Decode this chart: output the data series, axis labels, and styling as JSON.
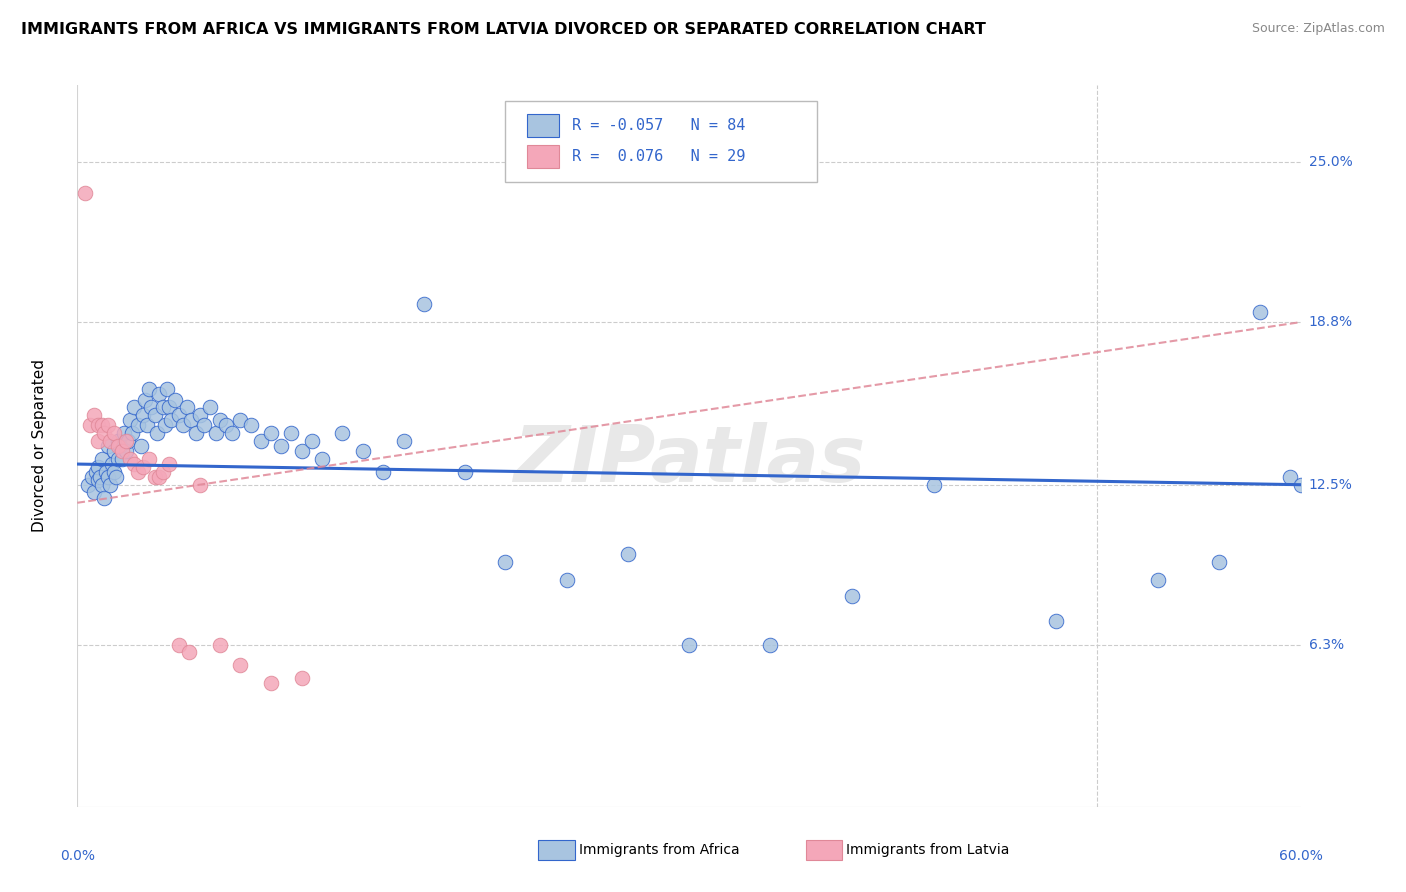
{
  "title": "IMMIGRANTS FROM AFRICA VS IMMIGRANTS FROM LATVIA DIVORCED OR SEPARATED CORRELATION CHART",
  "source": "Source: ZipAtlas.com",
  "ylabel": "Divorced or Separated",
  "xlim": [
    0.0,
    0.6
  ],
  "ylim": [
    0.0,
    0.28
  ],
  "xtick_labels": [
    "0.0%",
    "60.0%"
  ],
  "ytick_values": [
    0.063,
    0.125,
    0.188,
    0.25
  ],
  "ytick_labels": [
    "6.3%",
    "12.5%",
    "18.8%",
    "25.0%"
  ],
  "gridline_color": "#cccccc",
  "background_color": "#ffffff",
  "watermark": "ZIPatlas",
  "legend_r_africa": "-0.057",
  "legend_n_africa": "84",
  "legend_r_latvia": "0.076",
  "legend_n_latvia": "29",
  "africa_color": "#a8c4e0",
  "latvia_color": "#f4a7b9",
  "africa_line_color": "#3366cc",
  "latvia_line_color": "#e08898",
  "africa_line_y0": 0.133,
  "africa_line_y1": 0.125,
  "latvia_line_y0": 0.118,
  "latvia_line_y1": 0.188,
  "africa_scatter_x": [
    0.005,
    0.007,
    0.008,
    0.009,
    0.01,
    0.01,
    0.011,
    0.012,
    0.012,
    0.013,
    0.014,
    0.015,
    0.015,
    0.016,
    0.017,
    0.018,
    0.018,
    0.019,
    0.02,
    0.02,
    0.021,
    0.022,
    0.023,
    0.024,
    0.025,
    0.026,
    0.027,
    0.028,
    0.03,
    0.031,
    0.032,
    0.033,
    0.034,
    0.035,
    0.036,
    0.038,
    0.039,
    0.04,
    0.042,
    0.043,
    0.044,
    0.045,
    0.046,
    0.048,
    0.05,
    0.052,
    0.054,
    0.056,
    0.058,
    0.06,
    0.062,
    0.065,
    0.068,
    0.07,
    0.073,
    0.076,
    0.08,
    0.085,
    0.09,
    0.095,
    0.1,
    0.105,
    0.11,
    0.115,
    0.12,
    0.13,
    0.14,
    0.15,
    0.16,
    0.17,
    0.19,
    0.21,
    0.24,
    0.27,
    0.3,
    0.34,
    0.38,
    0.42,
    0.48,
    0.53,
    0.56,
    0.58,
    0.595,
    0.6
  ],
  "africa_scatter_y": [
    0.125,
    0.128,
    0.122,
    0.13,
    0.127,
    0.132,
    0.128,
    0.125,
    0.135,
    0.12,
    0.13,
    0.128,
    0.14,
    0.125,
    0.133,
    0.13,
    0.138,
    0.128,
    0.135,
    0.142,
    0.14,
    0.135,
    0.145,
    0.138,
    0.142,
    0.15,
    0.145,
    0.155,
    0.148,
    0.14,
    0.152,
    0.158,
    0.148,
    0.162,
    0.155,
    0.152,
    0.145,
    0.16,
    0.155,
    0.148,
    0.162,
    0.155,
    0.15,
    0.158,
    0.152,
    0.148,
    0.155,
    0.15,
    0.145,
    0.152,
    0.148,
    0.155,
    0.145,
    0.15,
    0.148,
    0.145,
    0.15,
    0.148,
    0.142,
    0.145,
    0.14,
    0.145,
    0.138,
    0.142,
    0.135,
    0.145,
    0.138,
    0.13,
    0.142,
    0.195,
    0.13,
    0.095,
    0.088,
    0.098,
    0.063,
    0.063,
    0.082,
    0.125,
    0.072,
    0.088,
    0.095,
    0.192,
    0.128,
    0.125
  ],
  "latvia_scatter_x": [
    0.004,
    0.006,
    0.008,
    0.01,
    0.01,
    0.012,
    0.013,
    0.015,
    0.016,
    0.018,
    0.02,
    0.022,
    0.024,
    0.026,
    0.028,
    0.03,
    0.032,
    0.035,
    0.038,
    0.04,
    0.042,
    0.045,
    0.05,
    0.055,
    0.06,
    0.07,
    0.08,
    0.095,
    0.11
  ],
  "latvia_scatter_y": [
    0.238,
    0.148,
    0.152,
    0.148,
    0.142,
    0.148,
    0.145,
    0.148,
    0.142,
    0.145,
    0.14,
    0.138,
    0.142,
    0.135,
    0.133,
    0.13,
    0.132,
    0.135,
    0.128,
    0.128,
    0.13,
    0.133,
    0.063,
    0.06,
    0.125,
    0.063,
    0.055,
    0.048,
    0.05
  ]
}
